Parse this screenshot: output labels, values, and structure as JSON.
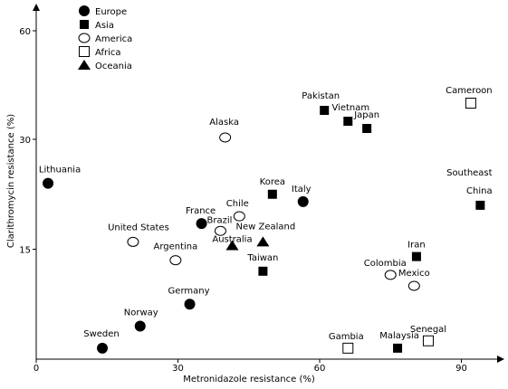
{
  "chart_data": {
    "type": "scatter",
    "xlabel": "Metronidazole resistance (%)",
    "ylabel": "Clarithromycin resistance (%)",
    "xlim": [
      0,
      97
    ],
    "ylim": [
      0,
      65
    ],
    "x_ticks": [
      "0",
      "30",
      "60",
      "90"
    ],
    "x_tick_values": [
      0,
      30,
      60,
      90
    ],
    "y_ticks": [
      "15",
      "30",
      "60"
    ],
    "y_tick_values": [
      15,
      30,
      60
    ],
    "y_axis_note": "y-axis is nonlinear: 0-30 spaced evenly, 30-60 compressed into same span as 15-30",
    "legend": [
      {
        "name": "Europe",
        "marker": "filled-circle"
      },
      {
        "name": "Asia",
        "marker": "filled-square"
      },
      {
        "name": "America",
        "marker": "open-circle"
      },
      {
        "name": "Africa",
        "marker": "open-square"
      },
      {
        "name": "Oceania",
        "marker": "filled-triangle"
      }
    ],
    "legend_position": "top-left",
    "series": [
      {
        "name": "Europe",
        "marker": "filled-circle",
        "points": [
          {
            "label": "Lithuania",
            "x": 2.5,
            "y": 24.0
          },
          {
            "label": "France",
            "x": 35.0,
            "y": 18.5
          },
          {
            "label": "Italy",
            "x": 56.5,
            "y": 21.5
          },
          {
            "label": "Germany",
            "x": 32.5,
            "y": 7.5
          },
          {
            "label": "Norway",
            "x": 22.0,
            "y": 4.5
          },
          {
            "label": "Sweden",
            "x": 14.0,
            "y": 1.5
          }
        ]
      },
      {
        "name": "Asia",
        "marker": "filled-square",
        "points": [
          {
            "label": "Pakistan",
            "x": 61.0,
            "y": 38.0
          },
          {
            "label": "Vietnam",
            "x": 66.0,
            "y": 35.0
          },
          {
            "label": "Japan",
            "x": 70.0,
            "y": 33.0
          },
          {
            "label": "Korea",
            "x": 50.0,
            "y": 22.5
          },
          {
            "label": "Taiwan",
            "x": 48.0,
            "y": 12.0
          },
          {
            "label": "Iran",
            "x": 80.5,
            "y": 14.0
          },
          {
            "label": "Southeast China",
            "x": 94.0,
            "y": 21.0
          },
          {
            "label": "Malaysia",
            "x": 76.5,
            "y": 1.5
          }
        ]
      },
      {
        "name": "America",
        "marker": "open-circle",
        "points": [
          {
            "label": "Alaska",
            "x": 40.0,
            "y": 30.5
          },
          {
            "label": "Chile",
            "x": 43.0,
            "y": 19.5
          },
          {
            "label": "Brazil",
            "x": 39.0,
            "y": 17.5
          },
          {
            "label": "United States",
            "x": 20.5,
            "y": 16.0
          },
          {
            "label": "Argentina",
            "x": 29.5,
            "y": 13.5
          },
          {
            "label": "Colombia",
            "x": 75.0,
            "y": 11.5
          },
          {
            "label": "Mexico",
            "x": 80.0,
            "y": 10.0
          }
        ]
      },
      {
        "name": "Africa",
        "marker": "open-square",
        "points": [
          {
            "label": "Cameroon",
            "x": 92.0,
            "y": 40.0
          },
          {
            "label": "Gambia",
            "x": 66.0,
            "y": 1.5
          },
          {
            "label": "Senegal",
            "x": 83.0,
            "y": 2.5
          }
        ]
      },
      {
        "name": "Oceania",
        "marker": "filled-triangle",
        "points": [
          {
            "label": "Australia",
            "x": 41.5,
            "y": 15.5
          },
          {
            "label": "New Zealand",
            "x": 48.0,
            "y": 16.0
          }
        ]
      }
    ]
  }
}
